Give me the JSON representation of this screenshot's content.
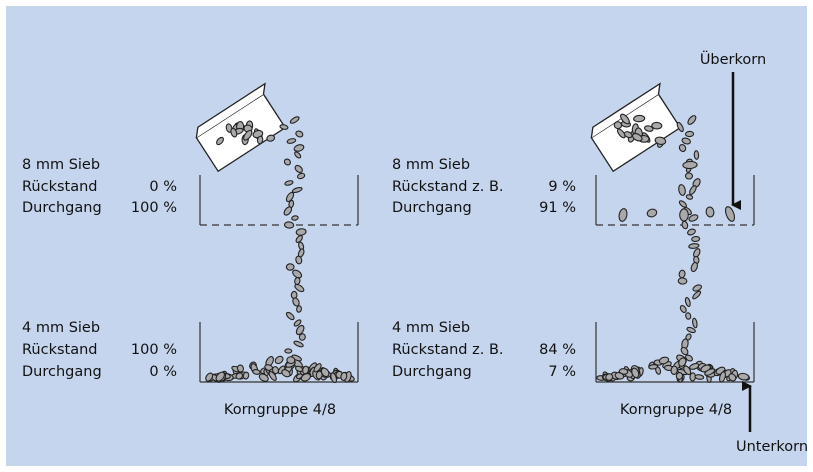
{
  "panels": [
    {
      "sieves": [
        {
          "label": "8 mm Sieb",
          "rows": [
            {
              "label": "Rückstand",
              "value": "0 %"
            },
            {
              "label": "Durchgang",
              "value": "100 %"
            }
          ]
        },
        {
          "label": "4 mm Sieb",
          "rows": [
            {
              "label": "Rückstand",
              "value": "100 %"
            },
            {
              "label": "Durchgang",
              "value": "0 %"
            }
          ]
        }
      ],
      "caption": "Korngruppe 4/8"
    },
    {
      "sieves": [
        {
          "label": "8 mm Sieb",
          "rows": [
            {
              "label": "Rückstand  z. B.",
              "value": "9 %"
            },
            {
              "label": "Durchgang",
              "value": "91 %"
            }
          ]
        },
        {
          "label": "4 mm Sieb",
          "rows": [
            {
              "label": "Rückstand  z. B.",
              "value": "84 %"
            },
            {
              "label": "Durchgang",
              "value": "7 %"
            }
          ]
        }
      ],
      "caption": "Korngruppe 4/8"
    }
  ],
  "annotations": {
    "oversize": "Überkorn",
    "undersize": "Unterkorn"
  }
}
